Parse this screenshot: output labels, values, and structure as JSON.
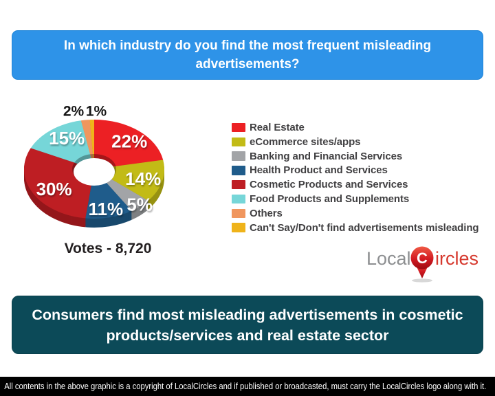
{
  "header": {
    "title": "In which industry do you find the most frequent misleading advertisements?"
  },
  "chart_data": {
    "type": "pie",
    "style": "3d-donut",
    "title": "In which industry do you find the most frequent misleading advertisements?",
    "categories": [
      "Real Estate",
      "eCommerce sites/apps",
      "Banking and Financial Services",
      "Health Product and Services",
      "Cosmetic Products and Services",
      "Food Products and Supplements",
      "Others",
      "Can't Say/Don't find advertisements misleading"
    ],
    "values": [
      22,
      14,
      5,
      11,
      30,
      15,
      2,
      1
    ],
    "unit": "%",
    "colors": [
      "#EC2024",
      "#C2BB16",
      "#A2A4A7",
      "#1F5C8B",
      "#BE1E23",
      "#76D6D8",
      "#F0965E",
      "#EFB31A"
    ],
    "legend_position": "right",
    "start_angle_deg": 0,
    "direction": "clockwise",
    "annotation": "Votes - 8,720"
  },
  "logo": {
    "part1": "Local",
    "monogram": "C",
    "part2": "ircles"
  },
  "banner": {
    "text": "Consumers find most misleading advertisements in cosmetic products/services and real estate sector"
  },
  "footer": {
    "text": "All contents in the above graphic is a copyright of LocalCircles and if published or broadcasted, must carry the LocalCircles logo along with it."
  },
  "colors": {
    "header_bg": "#2E93E8",
    "banner_bg": "#0C4A58",
    "footer_bg": "#000000",
    "legend_text": "#414042",
    "logo_gray": "#8D8F91",
    "logo_red": "#D6392E"
  }
}
